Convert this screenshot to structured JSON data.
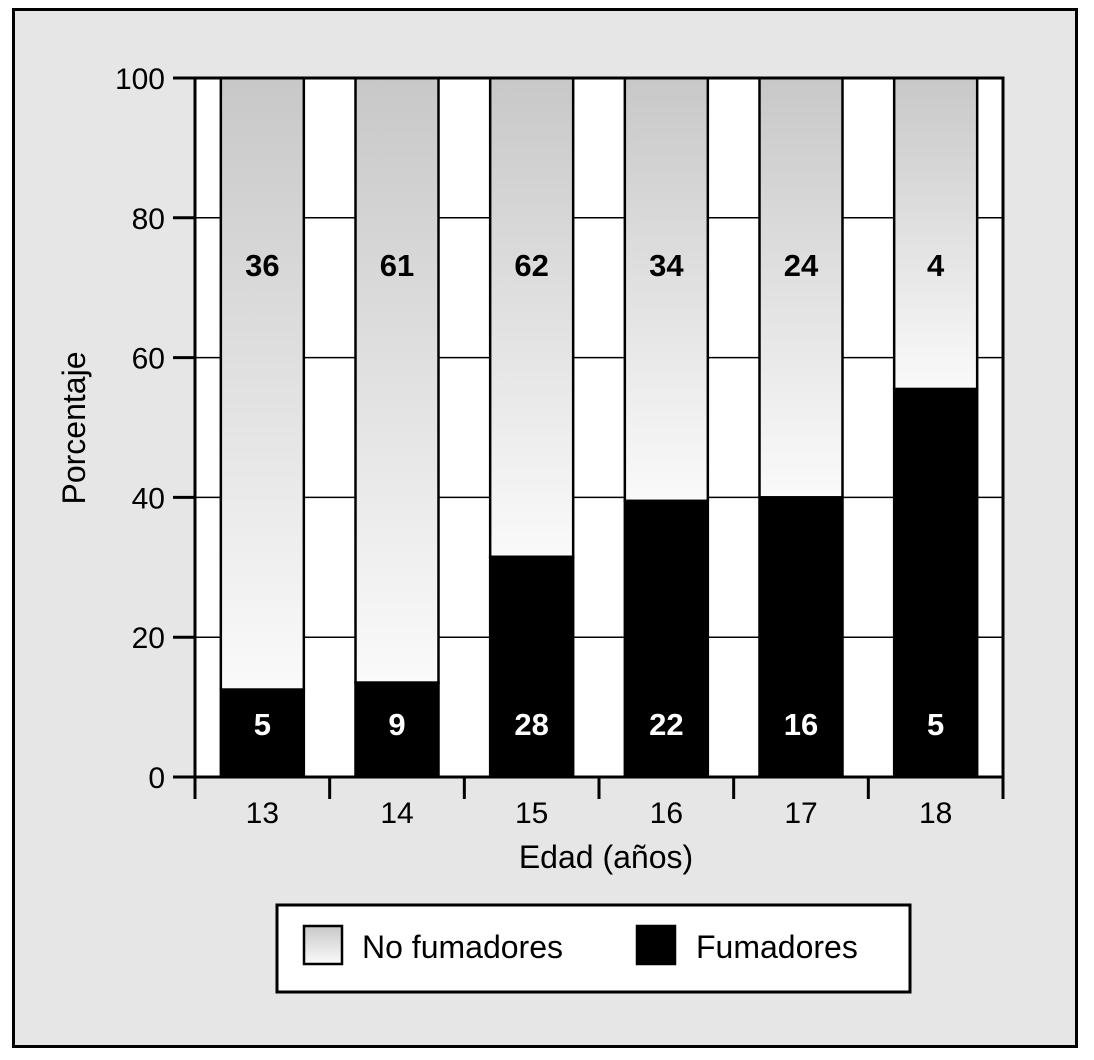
{
  "chart_data": {
    "type": "bar",
    "stacked": true,
    "categories": [
      "13",
      "14",
      "15",
      "16",
      "17",
      "18"
    ],
    "series": [
      {
        "name": "Fumadores",
        "values": [
          12.5,
          13.5,
          31.5,
          39.5,
          40,
          55.5
        ],
        "labels": [
          "5",
          "9",
          "28",
          "22",
          "16",
          "5"
        ],
        "color": "#000000"
      },
      {
        "name": "No fumadores",
        "values": [
          87.5,
          86.5,
          68.5,
          60.5,
          60,
          44.5
        ],
        "labels": [
          "36",
          "61",
          "62",
          "34",
          "24",
          "4"
        ],
        "color_top": "#c8c8c8",
        "color_bottom": "#fafafa"
      }
    ],
    "xlabel": "Edad (años)",
    "ylabel": "Porcentaje",
    "ylim": [
      0,
      100
    ],
    "yticks": [
      "0",
      "20",
      "40",
      "60",
      "80",
      "100"
    ],
    "grid": true,
    "legend": "bottom"
  }
}
